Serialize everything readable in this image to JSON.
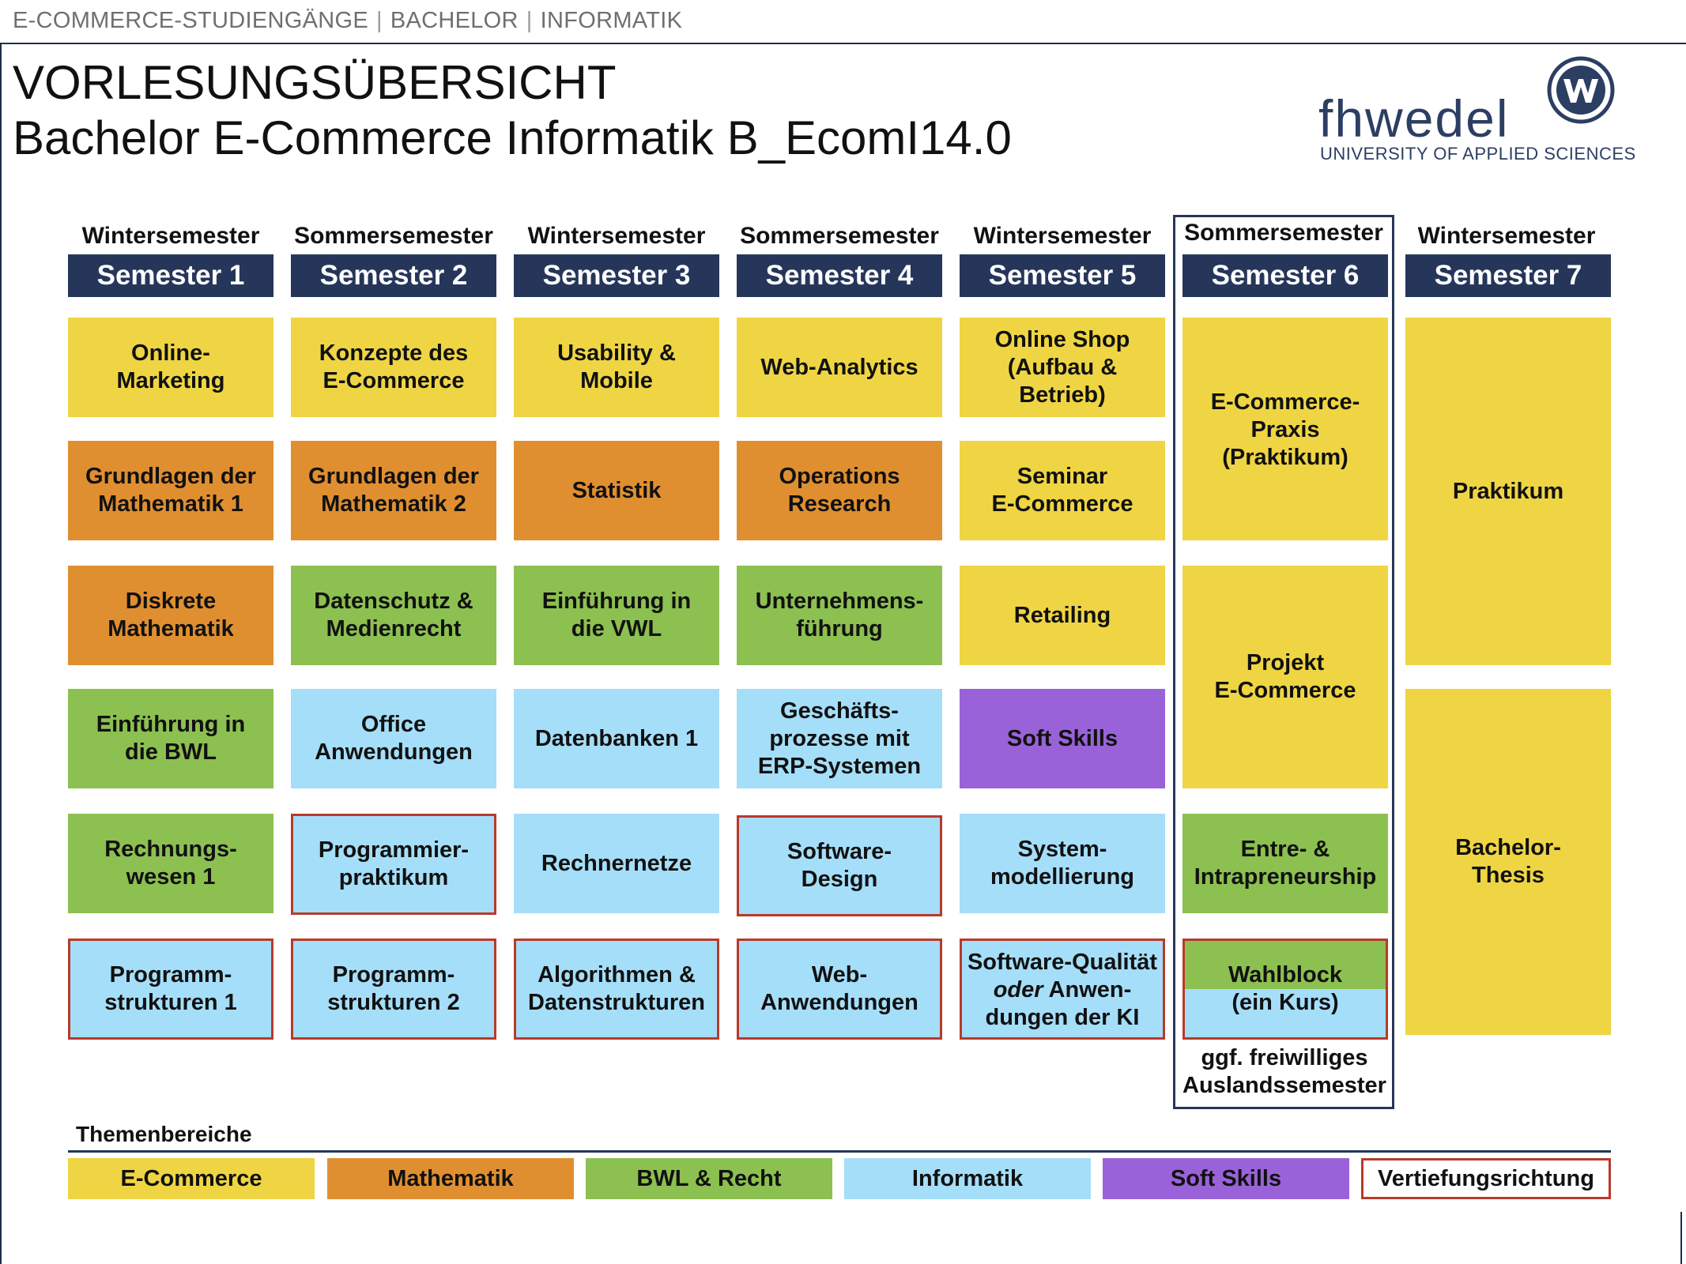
{
  "header": {
    "breadcrumb": [
      "E-COMMERCE-STUDIENGÄNGE",
      "BACHELOR",
      "INFORMATIK"
    ],
    "title": "VORLESUNGSÜBERSICHT",
    "subtitle": "Bachelor E-Commerce Informatik B_EcomI14.0"
  },
  "logo": {
    "name": "fhwedel",
    "tagline": "UNIVERSITY OF APPLIED SCIENCES",
    "icon": "fh-wedel-logo-mark"
  },
  "colors": {
    "ecommerce": "#efd543",
    "mathematik": "#e08f30",
    "bwl": "#8cc050",
    "informatik": "#a5def9",
    "softskills": "#9a62d8",
    "vertiefung": "#b83a2a",
    "header": "#26365a"
  },
  "semesters": [
    {
      "type": "Wintersemester",
      "label": "Semester 1"
    },
    {
      "type": "Sommersemester",
      "label": "Semester 2"
    },
    {
      "type": "Wintersemester",
      "label": "Semester 3"
    },
    {
      "type": "Sommersemester",
      "label": "Semester 4"
    },
    {
      "type": "Wintersemester",
      "label": "Semester 5"
    },
    {
      "type": "Sommersemester",
      "label": "Semester 6"
    },
    {
      "type": "Wintersemester",
      "label": "Semester 7"
    }
  ],
  "courses": {
    "s1": [
      "Online-\nMarketing",
      "Grundlagen der\nMathematik 1",
      "Diskrete\nMathematik",
      "Einführung in\ndie BWL",
      "Rechnungs-\nwesen 1",
      "Programm-\nstrukturen 1"
    ],
    "s2": [
      "Konzepte des\nE-Commerce",
      "Grundlagen der\nMathematik 2",
      "Datenschutz &\nMedienrecht",
      "Office\nAnwendungen",
      "Programmier-\npraktikum",
      "Programm-\nstrukturen 2"
    ],
    "s3": [
      "Usability &\nMobile",
      "Statistik",
      "Einführung in\ndie VWL",
      "Datenbanken 1",
      "Rechnernetze",
      "Algorithmen &\nDatenstrukturen"
    ],
    "s4": [
      "Web-Analytics",
      "Operations\nResearch",
      "Unternehmens-\nführung",
      "Geschäfts-\nprozesse mit\nERP-Systemen",
      "Software-\nDesign",
      "Web-\nAnwendungen"
    ],
    "s5": [
      "Online Shop\n(Aufbau &\nBetrieb)",
      "Seminar\nE-Commerce",
      "Retailing",
      "Soft Skills",
      "System-\nmodellierung"
    ],
    "s5_last": {
      "pre": "Software-Qualität",
      "em": "oder",
      "post": " Anwen-\ndungen der KI"
    },
    "s6": [
      "E-Commerce-\nPraxis\n(Praktikum)",
      "Projekt\nE-Commerce",
      "Entre- &\nIntrapreneurship"
    ],
    "s6_wahl": {
      "top": "Wahlblock",
      "bottom": "(ein Kurs)"
    },
    "s6_note": "ggf. freiwilliges\nAuslandssemester",
    "s7": [
      "Praktikum",
      "Bachelor-\nThesis"
    ]
  },
  "legend": {
    "title": "Themenbereiche",
    "items": [
      "E-Commerce",
      "Mathematik",
      "BWL & Recht",
      "Informatik",
      "Soft Skills",
      "Vertiefungsrichtung"
    ]
  }
}
